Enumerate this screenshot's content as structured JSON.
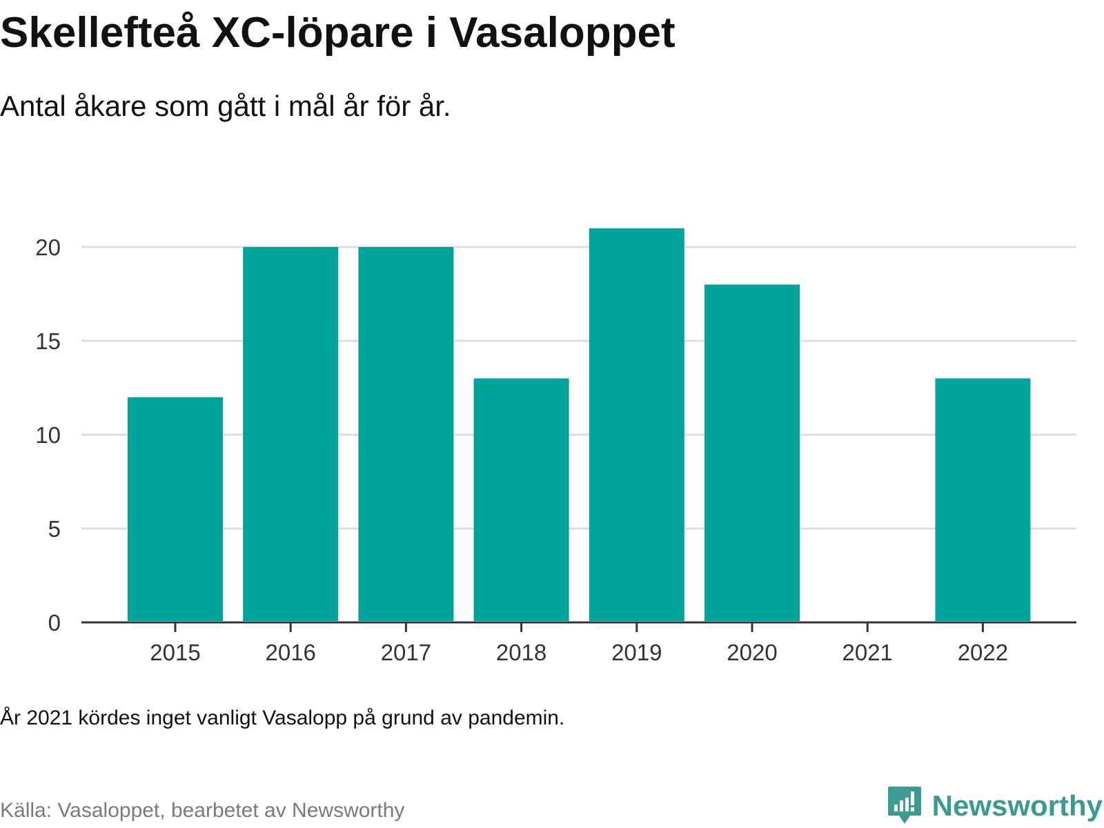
{
  "header": {
    "title": "Skellefteå XC-löpare i Vasaloppet",
    "subtitle": "Antal åkare som gått i mål år för år."
  },
  "footer": {
    "note": "År 2021 kördes inget vanligt Vasalopp på grund av pandemin.",
    "source": "Källa: Vasaloppet, bearbetet av Newsworthy",
    "brand": "Newsworthy"
  },
  "colors": {
    "bar": "#00a49a",
    "grid": "#dddddd",
    "axis": "#333333",
    "tick_text": "#333333",
    "brand": "#3b9a91"
  },
  "icons": {
    "brand_logo": "newsworthy-logo-icon"
  },
  "chart_data": {
    "type": "bar",
    "categories": [
      "2015",
      "2016",
      "2017",
      "2018",
      "2019",
      "2020",
      "2021",
      "2022"
    ],
    "values": [
      12,
      20,
      20,
      13,
      21,
      18,
      0,
      13
    ],
    "ylim": [
      0,
      21
    ],
    "yticks": [
      0,
      5,
      10,
      15,
      20
    ],
    "grid": true,
    "legend": "none"
  }
}
